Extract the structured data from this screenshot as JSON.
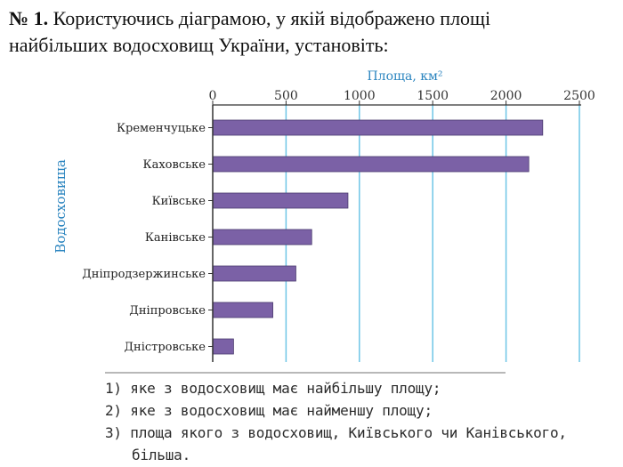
{
  "task": {
    "number": "№ 1.",
    "text_line1": "Користуючись діаграмою, у якій відображено площі",
    "text_line2": "найбільших водосховищ України, установіть:"
  },
  "chart_data": {
    "type": "bar",
    "orientation": "horizontal",
    "xlabel": "Площа, км²",
    "ylabel": "Водосховища",
    "categories": [
      "Кременчуцьке",
      "Каховське",
      "Київське",
      "Канівське",
      "Дніпродзержинське",
      "Дніпровське",
      "Дністровське"
    ],
    "values": [
      2250,
      2155,
      922,
      675,
      567,
      410,
      142
    ],
    "xlim": [
      0,
      2500
    ],
    "ticks": [
      0,
      500,
      1000,
      1500,
      2000,
      2500
    ],
    "grid": true,
    "axis_position": "top",
    "colors": {
      "bar": "#7b61a6",
      "bar_stroke": "#4a3a6e",
      "axis_label": "#2a84bf",
      "grid": "#6ec6e6"
    }
  },
  "questions": [
    "1) яке з водосховищ має найбільшу площу;",
    "2) яке з водосховищ має найменшу площу;",
    "3) площа якого з водосховищ, Київського чи Канівського,",
    "більша."
  ]
}
